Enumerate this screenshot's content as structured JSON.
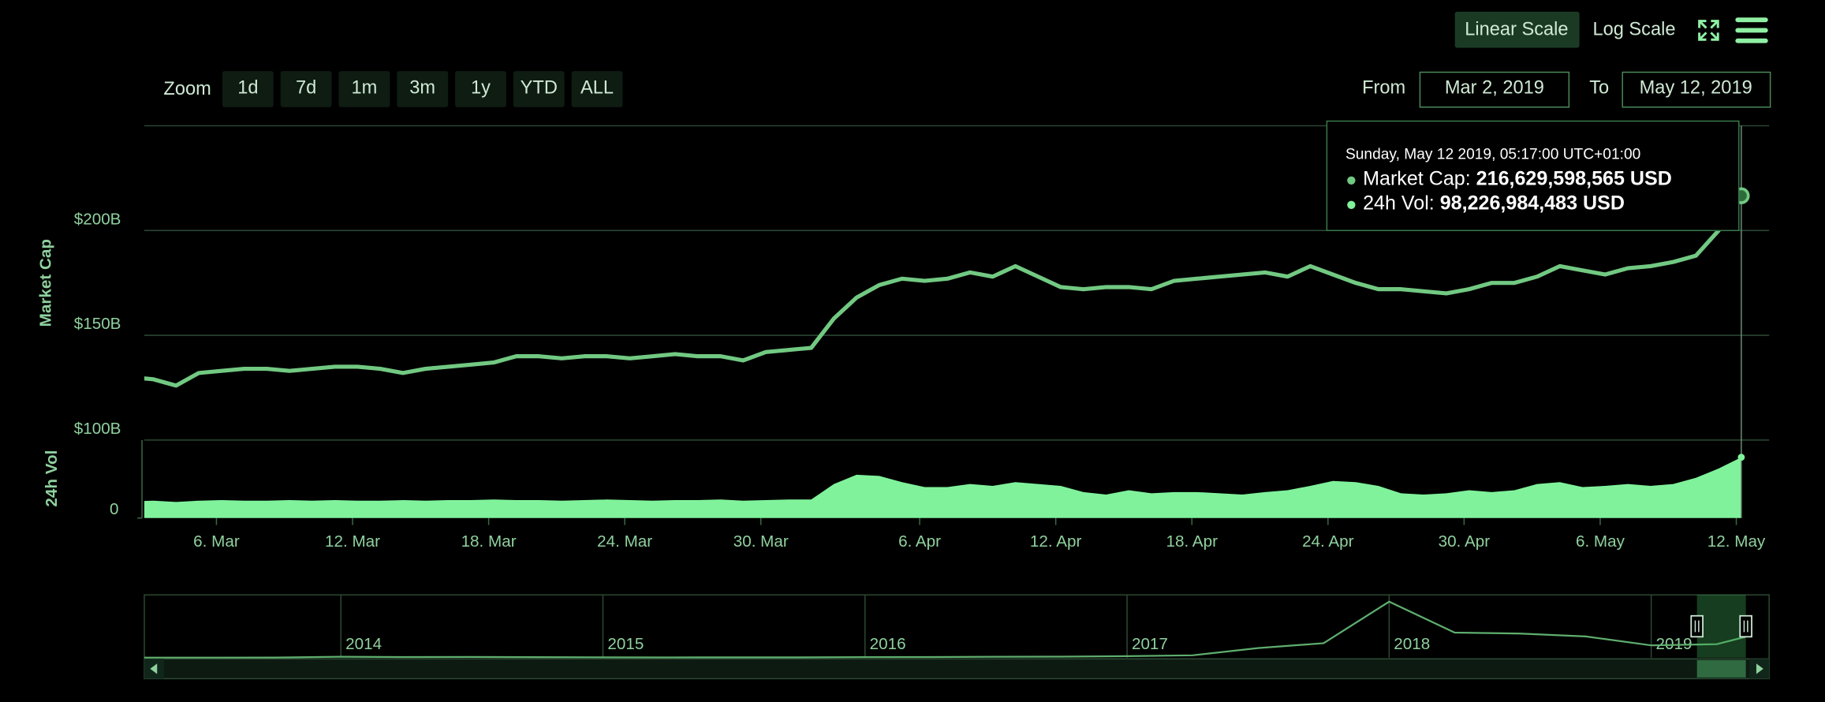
{
  "toolbar": {
    "scales": [
      "Linear Scale",
      "Log Scale"
    ],
    "zoom_label": "Zoom",
    "zoom_buttons": [
      "1d",
      "7d",
      "1m",
      "3m",
      "1y",
      "YTD",
      "ALL"
    ],
    "from_label": "From",
    "from": "Mar 2, 2019",
    "to_label": "To",
    "to": "May 12, 2019"
  },
  "tooltip": {
    "date": "Sunday, May 12 2019, 05:17:00 UTC+01:00",
    "market_cap_label": "Market Cap:",
    "market_cap": "216,629,598,565 USD",
    "volume_label": "24h Vol:",
    "volume": "98,226,984,483 USD"
  },
  "chart_data": [
    {
      "type": "line",
      "x": [
        "2. Mar",
        "3. Mar",
        "4. Mar",
        "5. Mar",
        "6. Mar",
        "7. Mar",
        "8. Mar",
        "9. Mar",
        "10. Mar",
        "11. Mar",
        "12. Mar",
        "13. Mar",
        "14. Mar",
        "15. Mar",
        "16. Mar",
        "17. Mar",
        "18. Mar",
        "19. Mar",
        "20. Mar",
        "21. Mar",
        "22. Mar",
        "23. Mar",
        "24. Mar",
        "25. Mar",
        "26. Mar",
        "27. Mar",
        "28. Mar",
        "29. Mar",
        "30. Mar",
        "31. Mar",
        "1. Apr",
        "2. Apr",
        "3. Apr",
        "4. Apr",
        "5. Apr",
        "6. Apr",
        "7. Apr",
        "8. Apr",
        "9. Apr",
        "10. Apr",
        "11. Apr",
        "12. Apr",
        "13. Apr",
        "14. Apr",
        "15. Apr",
        "16. Apr",
        "17. Apr",
        "18. Apr",
        "19. Apr",
        "20. Apr",
        "21. Apr",
        "22. Apr",
        "23. Apr",
        "24. Apr",
        "25. Apr",
        "26. Apr",
        "27. Apr",
        "28. Apr",
        "29. Apr",
        "30. Apr",
        "1. May",
        "2. May",
        "3. May",
        "4. May",
        "5. May",
        "6. May",
        "7. May",
        "8. May",
        "9. May",
        "10. May",
        "11. May",
        "12. May"
      ],
      "xticks": [
        "6. Mar",
        "12. Mar",
        "18. Mar",
        "24. Mar",
        "30. Mar",
        "6. Apr",
        "12. Apr",
        "18. Apr",
        "24. Apr",
        "30. Apr",
        "6. May",
        "12. May"
      ],
      "series": [
        {
          "name": "Market Cap",
          "color": "#72c982",
          "values": [
            130,
            129,
            126,
            132,
            133,
            134,
            134,
            133,
            134,
            135,
            135,
            134,
            132,
            134,
            135,
            136,
            137,
            140,
            140,
            139,
            140,
            140,
            139,
            140,
            141,
            140,
            140,
            138,
            142,
            143,
            144,
            158,
            168,
            174,
            177,
            176,
            177,
            180,
            178,
            183,
            178,
            173,
            172,
            173,
            173,
            172,
            176,
            177,
            178,
            179,
            180,
            178,
            183,
            179,
            175,
            172,
            172,
            171,
            170,
            172,
            175,
            175,
            178,
            183,
            181,
            179,
            182,
            183,
            185,
            188,
            200,
            216.6
          ]
        },
        {
          "name": "24h Vol",
          "color": "#80f29b",
          "axis": "y2",
          "values": [
            27,
            28,
            26,
            28,
            29,
            28,
            28,
            29,
            28,
            29,
            28,
            28,
            29,
            28,
            29,
            29,
            30,
            29,
            29,
            28,
            29,
            30,
            29,
            28,
            29,
            29,
            30,
            28,
            29,
            30,
            30,
            55,
            70,
            68,
            58,
            50,
            50,
            55,
            52,
            58,
            55,
            52,
            42,
            38,
            45,
            40,
            42,
            42,
            40,
            38,
            42,
            45,
            52,
            60,
            58,
            52,
            40,
            38,
            40,
            45,
            42,
            45,
            55,
            58,
            50,
            52,
            55,
            52,
            55,
            65,
            80,
            98.2
          ]
        }
      ],
      "ylim": [
        100,
        250
      ],
      "yticks": [
        {
          "value": 100,
          "label": "$100B"
        },
        {
          "value": 150,
          "label": "$150B"
        },
        {
          "value": 200,
          "label": "$200B"
        }
      ],
      "y2lim": [
        0,
        126
      ],
      "y2ticks": [
        0
      ],
      "grid": true
    },
    {
      "type": "area",
      "color": "#5fae6e",
      "x": [
        2013.25,
        2013.5,
        2013.75,
        2014.0,
        2014.25,
        2014.5,
        2014.75,
        2015.0,
        2015.25,
        2015.5,
        2015.75,
        2016.0,
        2016.25,
        2016.5,
        2016.75,
        2017.0,
        2017.25,
        2017.5,
        2017.75,
        2018.0,
        2018.25,
        2018.5,
        2018.75,
        2019.0,
        2019.25,
        2019.36
      ],
      "values": [
        1.5,
        1.5,
        2,
        10,
        7,
        8,
        6,
        4.5,
        3.5,
        4,
        4,
        6.5,
        7,
        10,
        11,
        16,
        25,
        100,
        150,
        580,
        260,
        250,
        220,
        128,
        140,
        216
      ],
      "xlim": [
        2013.25,
        2019.45
      ],
      "xticks": [
        2014,
        2015,
        2016,
        2017,
        2018,
        2019
      ],
      "ylim": [
        0,
        650
      ]
    }
  ]
}
